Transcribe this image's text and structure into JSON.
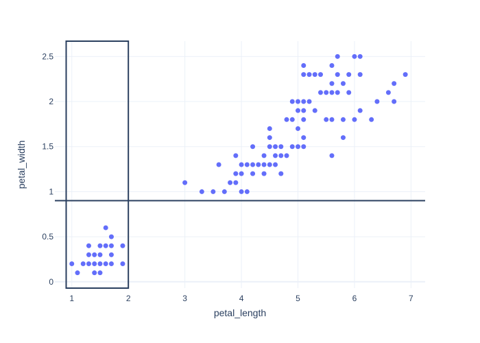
{
  "chart_data": {
    "type": "scatter",
    "title": "",
    "xlabel": "petal_length",
    "ylabel": "petal_width",
    "xlim": [
      0.7,
      7.25
    ],
    "ylim": [
      -0.07,
      2.67
    ],
    "xticks": [
      1,
      2,
      3,
      4,
      5,
      6,
      7
    ],
    "yticks": [
      0,
      0.5,
      1,
      1.5,
      2,
      2.5
    ],
    "grid": true,
    "marker_color": "#636efa",
    "shapes_color": "#2a3f5f",
    "rectangle": {
      "x0": 0.9,
      "x1": 2.0,
      "y0": -0.07,
      "y1": 2.67
    },
    "hline": {
      "y": 0.9
    },
    "points": [
      [
        1.0,
        0.2
      ],
      [
        1.1,
        0.1
      ],
      [
        1.2,
        0.2
      ],
      [
        1.3,
        0.2
      ],
      [
        1.3,
        0.3
      ],
      [
        1.3,
        0.4
      ],
      [
        1.4,
        0.2
      ],
      [
        1.4,
        0.3
      ],
      [
        1.4,
        0.1
      ],
      [
        1.5,
        0.2
      ],
      [
        1.5,
        0.4
      ],
      [
        1.5,
        0.1
      ],
      [
        1.5,
        0.3
      ],
      [
        1.6,
        0.2
      ],
      [
        1.6,
        0.4
      ],
      [
        1.6,
        0.6
      ],
      [
        1.7,
        0.2
      ],
      [
        1.7,
        0.3
      ],
      [
        1.7,
        0.4
      ],
      [
        1.7,
        0.5
      ],
      [
        1.9,
        0.2
      ],
      [
        1.9,
        0.4
      ],
      [
        3.0,
        1.1
      ],
      [
        3.3,
        1.0
      ],
      [
        3.5,
        1.0
      ],
      [
        3.6,
        1.3
      ],
      [
        3.7,
        1.0
      ],
      [
        3.8,
        1.1
      ],
      [
        3.9,
        1.1
      ],
      [
        3.9,
        1.2
      ],
      [
        3.9,
        1.4
      ],
      [
        4.0,
        1.0
      ],
      [
        4.0,
        1.2
      ],
      [
        4.0,
        1.3
      ],
      [
        4.1,
        1.0
      ],
      [
        4.1,
        1.3
      ],
      [
        4.2,
        1.3
      ],
      [
        4.2,
        1.2
      ],
      [
        4.2,
        1.5
      ],
      [
        4.3,
        1.3
      ],
      [
        4.4,
        1.2
      ],
      [
        4.4,
        1.3
      ],
      [
        4.4,
        1.4
      ],
      [
        4.5,
        1.3
      ],
      [
        4.5,
        1.5
      ],
      [
        4.5,
        1.6
      ],
      [
        4.5,
        1.7
      ],
      [
        4.6,
        1.3
      ],
      [
        4.6,
        1.4
      ],
      [
        4.6,
        1.5
      ],
      [
        4.7,
        1.2
      ],
      [
        4.7,
        1.4
      ],
      [
        4.7,
        1.5
      ],
      [
        4.8,
        1.4
      ],
      [
        4.8,
        1.8
      ],
      [
        4.9,
        1.5
      ],
      [
        4.9,
        1.8
      ],
      [
        4.9,
        2.0
      ],
      [
        5.0,
        1.5
      ],
      [
        5.0,
        1.7
      ],
      [
        5.0,
        1.9
      ],
      [
        5.0,
        2.0
      ],
      [
        5.1,
        1.5
      ],
      [
        5.1,
        1.6
      ],
      [
        5.1,
        1.8
      ],
      [
        5.1,
        1.9
      ],
      [
        5.1,
        2.0
      ],
      [
        5.1,
        2.3
      ],
      [
        5.1,
        2.4
      ],
      [
        5.2,
        2.0
      ],
      [
        5.2,
        2.3
      ],
      [
        5.3,
        1.9
      ],
      [
        5.3,
        2.3
      ],
      [
        5.4,
        2.1
      ],
      [
        5.4,
        2.3
      ],
      [
        5.5,
        1.8
      ],
      [
        5.5,
        2.1
      ],
      [
        5.6,
        1.4
      ],
      [
        5.6,
        1.8
      ],
      [
        5.6,
        2.1
      ],
      [
        5.6,
        2.2
      ],
      [
        5.6,
        2.4
      ],
      [
        5.7,
        2.1
      ],
      [
        5.7,
        2.3
      ],
      [
        5.7,
        2.5
      ],
      [
        5.8,
        1.6
      ],
      [
        5.8,
        1.8
      ],
      [
        5.8,
        2.2
      ],
      [
        5.9,
        2.1
      ],
      [
        5.9,
        2.3
      ],
      [
        6.0,
        1.8
      ],
      [
        6.0,
        2.5
      ],
      [
        6.1,
        1.9
      ],
      [
        6.1,
        2.3
      ],
      [
        6.1,
        2.5
      ],
      [
        6.3,
        1.8
      ],
      [
        6.4,
        2.0
      ],
      [
        6.6,
        2.1
      ],
      [
        6.7,
        2.0
      ],
      [
        6.7,
        2.2
      ],
      [
        6.9,
        2.3
      ]
    ]
  }
}
